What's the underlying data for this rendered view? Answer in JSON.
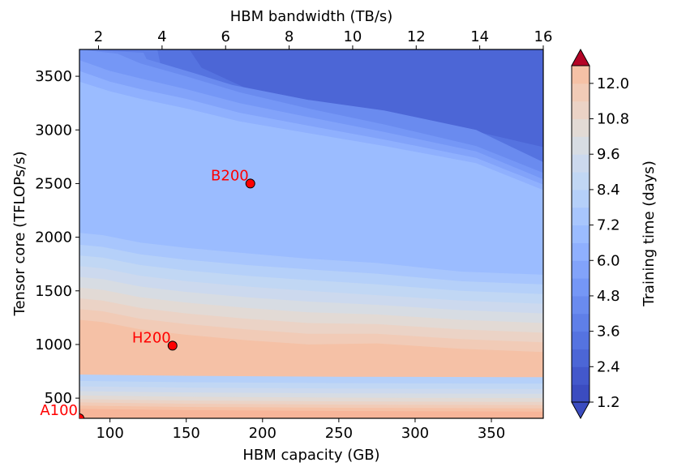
{
  "chart_data": {
    "type": "contour",
    "x_bottom": {
      "label": "HBM capacity (GB)",
      "range": [
        80,
        384
      ],
      "ticks": [
        100,
        150,
        200,
        250,
        300,
        350
      ]
    },
    "x_top": {
      "label": "HBM bandwidth (TB/s)",
      "range": [
        1.4,
        16
      ],
      "ticks": [
        2,
        4,
        6,
        8,
        10,
        12,
        14,
        16
      ]
    },
    "y": {
      "label": "Tensor core (TFLOPs/s)",
      "range": [
        312,
        3750
      ],
      "ticks": [
        500,
        1000,
        1500,
        2000,
        2500,
        3000,
        3500
      ]
    },
    "colorbar": {
      "label": "Training time (days)",
      "range": [
        1.2,
        12.6
      ],
      "step": 0.6,
      "tick_labels": [
        "1.2",
        "2.4",
        "3.6",
        "4.8",
        "6.0",
        "7.2",
        "8.4",
        "9.6",
        "10.8",
        "12.0"
      ],
      "tick_values": [
        1.2,
        2.4,
        3.6,
        4.8,
        6.0,
        7.2,
        8.4,
        9.6,
        10.8,
        12.0
      ],
      "extend": "both",
      "colormap": "coolwarm"
    },
    "points": [
      {
        "label": "A100",
        "capacity_gb": 80,
        "tflops": 312,
        "color": "#ff0000"
      },
      {
        "label": "H200",
        "capacity_gb": 141,
        "tflops": 989,
        "color": "#ff0000"
      },
      {
        "label": "B200",
        "capacity_gb": 192,
        "tflops": 2500,
        "color": "#ff0000"
      }
    ],
    "levels": [
      {
        "v": 2.4,
        "pts": [
          [
            80,
            3750
          ],
          [
            148,
            3750
          ],
          [
            300,
            3750
          ],
          [
            384,
            3750
          ]
        ]
      },
      {
        "v": 3.0,
        "pts": [
          [
            80,
            3750
          ],
          [
            152,
            3750
          ],
          [
            160,
            3580
          ],
          [
            195,
            3350
          ],
          [
            270,
            3150
          ],
          [
            320,
            3050
          ],
          [
            384,
            2840
          ]
        ]
      },
      {
        "v": 3.6,
        "pts": [
          [
            80,
            3750
          ],
          [
            131,
            3750
          ],
          [
            133,
            3620
          ],
          [
            170,
            3300
          ],
          [
            190,
            3140
          ],
          [
            235,
            2960
          ],
          [
            290,
            2850
          ],
          [
            340,
            2650
          ],
          [
            384,
            2610
          ]
        ]
      },
      {
        "v": 4.2,
        "pts": [
          [
            80,
            3750
          ],
          [
            122,
            3720
          ],
          [
            124,
            3660
          ],
          [
            155,
            3530
          ],
          [
            180,
            3420
          ],
          [
            230,
            3280
          ],
          [
            280,
            3180
          ],
          [
            340,
            3000
          ],
          [
            384,
            2700
          ]
        ]
      },
      {
        "v": 4.8,
        "pts": [
          [
            80,
            3750
          ],
          [
            105,
            3710
          ],
          [
            120,
            3620
          ],
          [
            150,
            3500
          ],
          [
            185,
            3350
          ],
          [
            230,
            3200
          ],
          [
            280,
            3050
          ],
          [
            340,
            2850
          ],
          [
            384,
            2600
          ]
        ]
      },
      {
        "v": 5.4,
        "pts": [
          [
            80,
            3650
          ],
          [
            100,
            3550
          ],
          [
            120,
            3480
          ],
          [
            150,
            3380
          ],
          [
            185,
            3250
          ],
          [
            230,
            3120
          ],
          [
            280,
            2980
          ],
          [
            340,
            2800
          ],
          [
            384,
            2540
          ]
        ]
      },
      {
        "v": 6.0,
        "pts": [
          [
            80,
            3550
          ],
          [
            100,
            3450
          ],
          [
            120,
            3380
          ],
          [
            150,
            3290
          ],
          [
            185,
            3160
          ],
          [
            230,
            3040
          ],
          [
            280,
            2910
          ],
          [
            340,
            2740
          ],
          [
            384,
            2490
          ]
        ]
      },
      {
        "v": 6.6,
        "pts": [
          [
            80,
            3450
          ],
          [
            100,
            3360
          ],
          [
            120,
            3290
          ],
          [
            150,
            3200
          ],
          [
            185,
            3080
          ],
          [
            230,
            2970
          ],
          [
            280,
            2850
          ],
          [
            340,
            2690
          ],
          [
            384,
            2440
          ]
        ]
      },
      {
        "v": 7.2,
        "pts": [
          [
            80,
            2040
          ],
          [
            95,
            2020
          ],
          [
            120,
            1950
          ],
          [
            150,
            1900
          ],
          [
            190,
            1850
          ],
          [
            230,
            1800
          ],
          [
            275,
            1760
          ],
          [
            330,
            1680
          ],
          [
            384,
            1650
          ]
        ]
      },
      {
        "v": 7.8,
        "pts": [
          [
            80,
            1930
          ],
          [
            95,
            1910
          ],
          [
            120,
            1840
          ],
          [
            150,
            1790
          ],
          [
            190,
            1740
          ],
          [
            230,
            1700
          ],
          [
            275,
            1660
          ],
          [
            330,
            1590
          ],
          [
            384,
            1560
          ]
        ]
      },
      {
        "v": 8.4,
        "pts": [
          [
            80,
            1830
          ],
          [
            95,
            1810
          ],
          [
            120,
            1740
          ],
          [
            150,
            1690
          ],
          [
            190,
            1640
          ],
          [
            230,
            1600
          ],
          [
            275,
            1560
          ],
          [
            330,
            1500
          ],
          [
            384,
            1470
          ]
        ]
      },
      {
        "v": 9.0,
        "pts": [
          [
            80,
            1730
          ],
          [
            95,
            1710
          ],
          [
            120,
            1640
          ],
          [
            150,
            1590
          ],
          [
            190,
            1540
          ],
          [
            230,
            1500
          ],
          [
            275,
            1460
          ],
          [
            330,
            1410
          ],
          [
            384,
            1380
          ]
        ]
      },
      {
        "v": 9.6,
        "pts": [
          [
            80,
            1630
          ],
          [
            95,
            1610
          ],
          [
            120,
            1540
          ],
          [
            150,
            1490
          ],
          [
            190,
            1440
          ],
          [
            230,
            1400
          ],
          [
            275,
            1370
          ],
          [
            330,
            1320
          ],
          [
            384,
            1290
          ]
        ]
      },
      {
        "v": 10.2,
        "pts": [
          [
            80,
            1530
          ],
          [
            95,
            1510
          ],
          [
            120,
            1440
          ],
          [
            150,
            1390
          ],
          [
            190,
            1340
          ],
          [
            230,
            1300
          ],
          [
            275,
            1280
          ],
          [
            330,
            1230
          ],
          [
            384,
            1200
          ]
        ]
      },
      {
        "v": 10.8,
        "pts": [
          [
            80,
            1430
          ],
          [
            95,
            1410
          ],
          [
            120,
            1340
          ],
          [
            150,
            1290
          ],
          [
            190,
            1240
          ],
          [
            230,
            1200
          ],
          [
            275,
            1190
          ],
          [
            330,
            1140
          ],
          [
            384,
            1110
          ]
        ]
      },
      {
        "v": 11.4,
        "pts": [
          [
            80,
            1330
          ],
          [
            95,
            1310
          ],
          [
            120,
            1240
          ],
          [
            150,
            1190
          ],
          [
            190,
            1140
          ],
          [
            230,
            1100
          ],
          [
            275,
            1100
          ],
          [
            330,
            1050
          ],
          [
            384,
            1020
          ]
        ]
      },
      {
        "v": 12.0,
        "pts": [
          [
            80,
            1230
          ],
          [
            95,
            1210
          ],
          [
            120,
            1140
          ],
          [
            150,
            1090
          ],
          [
            190,
            1040
          ],
          [
            230,
            1000
          ],
          [
            275,
            1010
          ],
          [
            330,
            960
          ],
          [
            384,
            930
          ]
        ]
      }
    ],
    "colors": [
      "#3b4cc0",
      "#4358cb",
      "#4c66d6",
      "#5573e0",
      "#5f7fe8",
      "#6a8bef",
      "#7597f6",
      "#82a3fa",
      "#8fb0fe",
      "#9bbcff",
      "#a8c6fd",
      "#b5d0f9",
      "#c1d7f4",
      "#ccd9ee",
      "#d7dce3",
      "#e2dad5",
      "#ebd3c6",
      "#f1cbb7",
      "#f5c1a6",
      "#f7b599",
      "#f6a789",
      "#f4987a",
      "#ef886b",
      "#e8765c",
      "#de614d",
      "#d24b40",
      "#c43032",
      "#b40426"
    ]
  }
}
